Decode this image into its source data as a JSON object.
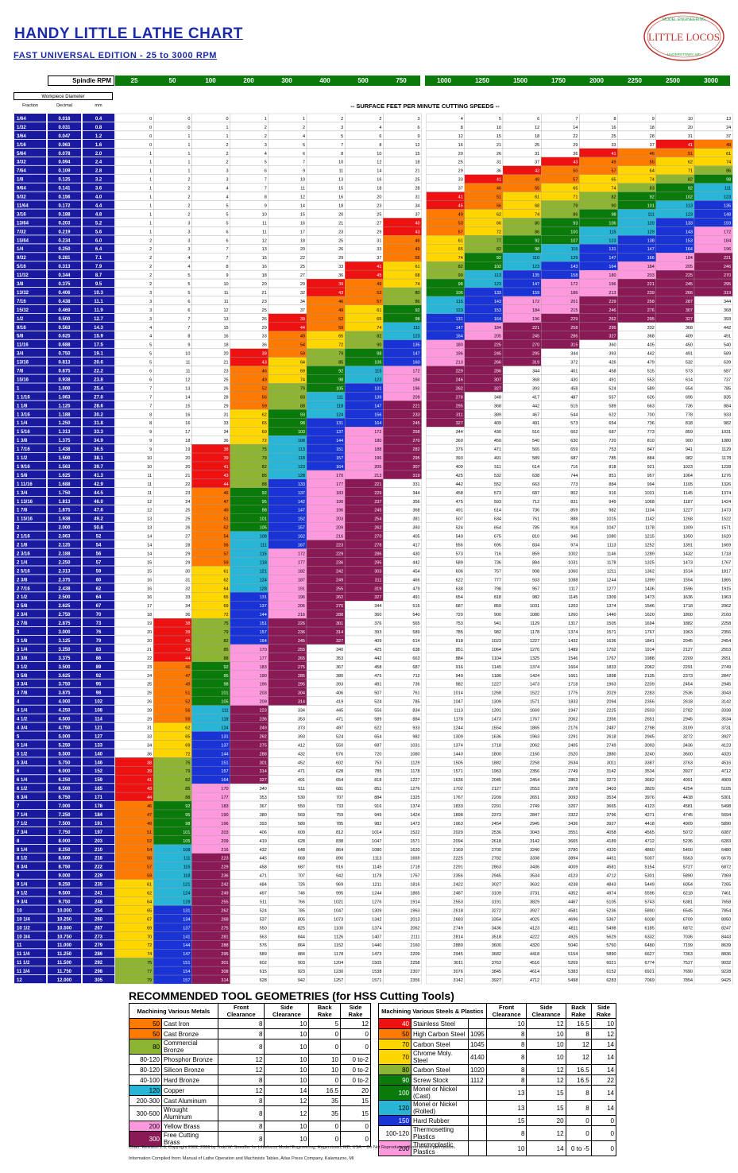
{
  "header": {
    "title": "HANDY LITTLE LATHE CHART",
    "subtitle": "FAST UNIVERSAL EDITION - 25 to 3000 RPM",
    "logo_text": "LITTLE LOCOS",
    "logo_top": "MODEL ENGINEERING",
    "logo_bottom": "HAGERSTOWN, MD"
  },
  "spindle": {
    "label": "Spindle RPM",
    "rpms": [
      "25",
      "50",
      "100",
      "200",
      "300",
      "400",
      "500",
      "750",
      "1000",
      "1250",
      "1500",
      "1750",
      "2000",
      "2250",
      "2500",
      "3000"
    ]
  },
  "workpiece": {
    "label": "Workpiece Diameter",
    "fraction": "Fraction",
    "decimal": "Decimal",
    "mm": "mm",
    "sfpm_caption": "-- SURFACE FEET PER MINUTE CUTTING SPEEDS --"
  },
  "colors": {
    "row_bg": "#1a1aa0",
    "green_header": "#0a7a0a",
    "band_red": "#ee1111",
    "band_orange": "#ff7a00",
    "band_yellow": "#ffd600",
    "band_olive": "#8db432",
    "band_blue": "#1a33d6",
    "band_cyan": "#29b6d6",
    "band_magenta": "#8a1a56",
    "band_pink": "#ff99dd",
    "band_darkgreen": "#0a7a0a"
  },
  "chart_data": {
    "type": "table",
    "rows": [
      {
        "frac": "1/64",
        "dec": "0.016",
        "mm": "0.4"
      },
      {
        "frac": "1/32",
        "dec": "0.031",
        "mm": "0.8"
      },
      {
        "frac": "3/64",
        "dec": "0.047",
        "mm": "1.2"
      },
      {
        "frac": "1/16",
        "dec": "0.063",
        "mm": "1.6"
      },
      {
        "frac": "5/64",
        "dec": "0.078",
        "mm": "2.0"
      },
      {
        "frac": "3/32",
        "dec": "0.094",
        "mm": "2.4"
      },
      {
        "frac": "7/64",
        "dec": "0.109",
        "mm": "2.8"
      },
      {
        "frac": "1/8",
        "dec": "0.125",
        "mm": "3.2"
      },
      {
        "frac": "9/64",
        "dec": "0.141",
        "mm": "3.6"
      },
      {
        "frac": "5/32",
        "dec": "0.156",
        "mm": "4.0"
      },
      {
        "frac": "11/64",
        "dec": "0.172",
        "mm": "4.4"
      },
      {
        "frac": "3/16",
        "dec": "0.188",
        "mm": "4.8"
      },
      {
        "frac": "13/64",
        "dec": "0.203",
        "mm": "5.2"
      },
      {
        "frac": "7/32",
        "dec": "0.219",
        "mm": "5.6"
      },
      {
        "frac": "15/64",
        "dec": "0.234",
        "mm": "6.0"
      },
      {
        "frac": "1/4",
        "dec": "0.250",
        "mm": "6.4"
      },
      {
        "frac": "9/32",
        "dec": "0.281",
        "mm": "7.1"
      },
      {
        "frac": "5/16",
        "dec": "0.313",
        "mm": "7.9"
      },
      {
        "frac": "11/32",
        "dec": "0.344",
        "mm": "8.7"
      },
      {
        "frac": "3/8",
        "dec": "0.375",
        "mm": "9.5"
      },
      {
        "frac": "13/32",
        "dec": "0.406",
        "mm": "10.3"
      },
      {
        "frac": "7/16",
        "dec": "0.438",
        "mm": "11.1"
      },
      {
        "frac": "15/32",
        "dec": "0.469",
        "mm": "11.9"
      },
      {
        "frac": "1/2",
        "dec": "0.500",
        "mm": "12.7"
      },
      {
        "frac": "9/16",
        "dec": "0.563",
        "mm": "14.3"
      },
      {
        "frac": "5/8",
        "dec": "0.625",
        "mm": "15.9"
      },
      {
        "frac": "11/16",
        "dec": "0.688",
        "mm": "17.5"
      },
      {
        "frac": "3/4",
        "dec": "0.750",
        "mm": "19.1"
      },
      {
        "frac": "13/16",
        "dec": "0.813",
        "mm": "20.6"
      },
      {
        "frac": "7/8",
        "dec": "0.875",
        "mm": "22.2"
      },
      {
        "frac": "15/16",
        "dec": "0.938",
        "mm": "23.8"
      },
      {
        "frac": "1",
        "dec": "1.000",
        "mm": "25.4"
      },
      {
        "frac": "1 1/16",
        "dec": "1.063",
        "mm": "27.0"
      },
      {
        "frac": "1 1/8",
        "dec": "1.125",
        "mm": "28.6"
      },
      {
        "frac": "1 3/16",
        "dec": "1.188",
        "mm": "30.2"
      },
      {
        "frac": "1 1/4",
        "dec": "1.250",
        "mm": "31.8"
      },
      {
        "frac": "1 5/16",
        "dec": "1.313",
        "mm": "33.3"
      },
      {
        "frac": "1 3/8",
        "dec": "1.375",
        "mm": "34.9"
      },
      {
        "frac": "1 7/16",
        "dec": "1.438",
        "mm": "36.5"
      },
      {
        "frac": "1 1/2",
        "dec": "1.500",
        "mm": "38.1"
      },
      {
        "frac": "1 9/16",
        "dec": "1.563",
        "mm": "39.7"
      },
      {
        "frac": "1 5/8",
        "dec": "1.625",
        "mm": "41.3"
      },
      {
        "frac": "1 11/16",
        "dec": "1.688",
        "mm": "42.9"
      },
      {
        "frac": "1 3/4",
        "dec": "1.750",
        "mm": "44.5"
      },
      {
        "frac": "1 13/16",
        "dec": "1.813",
        "mm": "46.0"
      },
      {
        "frac": "1 7/8",
        "dec": "1.875",
        "mm": "47.6"
      },
      {
        "frac": "1 15/16",
        "dec": "1.938",
        "mm": "49.2"
      },
      {
        "frac": "2",
        "dec": "2.000",
        "mm": "50.8"
      },
      {
        "frac": "2 1/16",
        "dec": "2.063",
        "mm": "52"
      },
      {
        "frac": "2 1/8",
        "dec": "2.125",
        "mm": "54"
      },
      {
        "frac": "2 3/16",
        "dec": "2.188",
        "mm": "56"
      },
      {
        "frac": "2 1/4",
        "dec": "2.250",
        "mm": "57"
      },
      {
        "frac": "2 5/16",
        "dec": "2.313",
        "mm": "59"
      },
      {
        "frac": "2 3/8",
        "dec": "2.375",
        "mm": "60"
      },
      {
        "frac": "2 7/16",
        "dec": "2.438",
        "mm": "62"
      },
      {
        "frac": "2 1/2",
        "dec": "2.500",
        "mm": "64"
      },
      {
        "frac": "2 5/8",
        "dec": "2.625",
        "mm": "67"
      },
      {
        "frac": "2 3/4",
        "dec": "2.750",
        "mm": "70"
      },
      {
        "frac": "2 7/8",
        "dec": "2.875",
        "mm": "73"
      },
      {
        "frac": "3",
        "dec": "3.000",
        "mm": "76"
      },
      {
        "frac": "3 1/8",
        "dec": "3.125",
        "mm": "79"
      },
      {
        "frac": "3 1/4",
        "dec": "3.250",
        "mm": "83"
      },
      {
        "frac": "3 3/8",
        "dec": "3.375",
        "mm": "86"
      },
      {
        "frac": "3 1/2",
        "dec": "3.500",
        "mm": "89"
      },
      {
        "frac": "3 5/8",
        "dec": "3.625",
        "mm": "92"
      },
      {
        "frac": "3 3/4",
        "dec": "3.750",
        "mm": "95"
      },
      {
        "frac": "3 7/8",
        "dec": "3.875",
        "mm": "98"
      },
      {
        "frac": "4",
        "dec": "4.000",
        "mm": "102"
      },
      {
        "frac": "4 1/4",
        "dec": "4.250",
        "mm": "108"
      },
      {
        "frac": "4 1/2",
        "dec": "4.500",
        "mm": "114"
      },
      {
        "frac": "4 3/4",
        "dec": "4.750",
        "mm": "121"
      },
      {
        "frac": "5",
        "dec": "5.000",
        "mm": "127"
      },
      {
        "frac": "5 1/4",
        "dec": "5.250",
        "mm": "133"
      },
      {
        "frac": "5 1/2",
        "dec": "5.500",
        "mm": "140"
      },
      {
        "frac": "5 3/4",
        "dec": "5.750",
        "mm": "146"
      },
      {
        "frac": "6",
        "dec": "6.000",
        "mm": "152"
      },
      {
        "frac": "6 1/4",
        "dec": "6.250",
        "mm": "159"
      },
      {
        "frac": "6 1/2",
        "dec": "6.500",
        "mm": "165"
      },
      {
        "frac": "6 3/4",
        "dec": "6.750",
        "mm": "171"
      },
      {
        "frac": "7",
        "dec": "7.000",
        "mm": "178"
      },
      {
        "frac": "7 1/4",
        "dec": "7.250",
        "mm": "184"
      },
      {
        "frac": "7 1/2",
        "dec": "7.500",
        "mm": "191"
      },
      {
        "frac": "7 3/4",
        "dec": "7.750",
        "mm": "197"
      },
      {
        "frac": "8",
        "dec": "8.000",
        "mm": "203"
      },
      {
        "frac": "8 1/4",
        "dec": "8.250",
        "mm": "210"
      },
      {
        "frac": "8 1/2",
        "dec": "8.500",
        "mm": "216"
      },
      {
        "frac": "8 3/4",
        "dec": "8.750",
        "mm": "222"
      },
      {
        "frac": "9",
        "dec": "9.000",
        "mm": "229"
      },
      {
        "frac": "9 1/4",
        "dec": "9.250",
        "mm": "235"
      },
      {
        "frac": "9 1/2",
        "dec": "9.500",
        "mm": "241"
      },
      {
        "frac": "9 3/4",
        "dec": "9.750",
        "mm": "248"
      },
      {
        "frac": "10",
        "dec": "10.000",
        "mm": "254"
      },
      {
        "frac": "10 1/4",
        "dec": "10.250",
        "mm": "260"
      },
      {
        "frac": "10 1/2",
        "dec": "10.500",
        "mm": "267"
      },
      {
        "frac": "10 3/4",
        "dec": "10.750",
        "mm": "273"
      },
      {
        "frac": "11",
        "dec": "11.000",
        "mm": "279"
      },
      {
        "frac": "11 1/4",
        "dec": "11.250",
        "mm": "286"
      },
      {
        "frac": "11 1/2",
        "dec": "11.500",
        "mm": "292"
      },
      {
        "frac": "11 3/4",
        "dec": "11.750",
        "mm": "298"
      },
      {
        "frac": "12",
        "dec": "12.000",
        "mm": "305"
      }
    ],
    "cell_formula": "round(decimal * pi * rpm / 12)",
    "bands": [
      {
        "lo": 0,
        "hi": 50,
        "color": "#ffffff"
      },
      {
        "lo": 38,
        "hi": 55,
        "color": "#ee1111"
      },
      {
        "lo": 45,
        "hi": 60,
        "color": "#ff7a00"
      },
      {
        "lo": 55,
        "hi": 80,
        "color": "#ffd600"
      },
      {
        "lo": 65,
        "hi": 100,
        "color": "#8db432"
      },
      {
        "lo": 80,
        "hi": 130,
        "color": "#0a7a0a"
      },
      {
        "lo": 100,
        "hi": 130,
        "color": "#29b6d6"
      },
      {
        "lo": 100,
        "hi": 170,
        "color": "#1a33d6"
      },
      {
        "lo": 150,
        "hi": 220,
        "color": "#ff99dd"
      },
      {
        "lo": 200,
        "hi": 330,
        "color": "#8a1a56"
      }
    ]
  },
  "recommended": {
    "title": "RECOMMENDED TOOL GEOMETRIES (for HSS Cutting Tools)",
    "left_head": [
      "Machining Various Metals",
      "Front Clearance",
      "Side Clearance",
      "Back Rake",
      "Side Rake"
    ],
    "right_head": [
      "Machining Various Steels & Plastics",
      "Front Clearance",
      "Side Clearance",
      "Back Rake",
      "Side Rake"
    ],
    "left_rows": [
      {
        "sfpm": "50",
        "color": "#ff7a00",
        "name": "Cast Iron",
        "fc": "8",
        "sc": "10",
        "br": "5",
        "sr": "12"
      },
      {
        "sfpm": "50",
        "color": "#ff7a00",
        "name": "Cast Bronze",
        "fc": "8",
        "sc": "10",
        "br": "0",
        "sr": "0"
      },
      {
        "sfpm": "80",
        "color": "#8db432",
        "name": "Commercial Bronze",
        "fc": "8",
        "sc": "10",
        "br": "0",
        "sr": "0"
      },
      {
        "sfpm": "80-120",
        "color": "#ffffff",
        "name": "Phosphor Bronze",
        "fc": "12",
        "sc": "10",
        "br": "10",
        "sr": "0 to-2"
      },
      {
        "sfpm": "80-120",
        "color": "#ffffff",
        "name": "Silicon Bronze",
        "fc": "12",
        "sc": "10",
        "br": "10",
        "sr": "0 to-2"
      },
      {
        "sfpm": "40-100",
        "color": "#ffffff",
        "name": "Hard Bronze",
        "fc": "8",
        "sc": "10",
        "br": "0",
        "sr": "0 to-2"
      },
      {
        "sfpm": "120",
        "color": "#29b6d6",
        "name": "Copper",
        "fc": "12",
        "sc": "14",
        "br": "16.5",
        "sr": "20"
      },
      {
        "sfpm": "200-300",
        "color": "#ffffff",
        "name": "Cast Aluminum",
        "fc": "8",
        "sc": "12",
        "br": "35",
        "sr": "15"
      },
      {
        "sfpm": "300-500",
        "color": "#ffffff",
        "name": "Wrought Aluminum",
        "fc": "8",
        "sc": "12",
        "br": "35",
        "sr": "15"
      },
      {
        "sfpm": "200",
        "color": "#ff99dd",
        "name": "Yellow Brass",
        "fc": "8",
        "sc": "10",
        "br": "0",
        "sr": "0"
      },
      {
        "sfpm": "300",
        "color": "#8a1a56",
        "name": "Free Cutting Brass",
        "fc": "8",
        "sc": "10",
        "br": "0",
        "sr": "0"
      }
    ],
    "right_rows": [
      {
        "sfpm": "40",
        "color": "#ee1111",
        "name": "Stainless Steel",
        "num": "",
        "fc": "10",
        "sc": "12",
        "br": "16.5",
        "sr": "10"
      },
      {
        "sfpm": "50",
        "color": "#ff7a00",
        "name": "High Carbon Steel",
        "num": "1095",
        "fc": "8",
        "sc": "10",
        "br": "8",
        "sr": "12"
      },
      {
        "sfpm": "70",
        "color": "#ffd600",
        "name": "Carbon Steel",
        "num": "1045",
        "fc": "8",
        "sc": "10",
        "br": "12",
        "sr": "14"
      },
      {
        "sfpm": "70",
        "color": "#ffd600",
        "name": "Chrome Moly. Steel",
        "num": "4140",
        "fc": "8",
        "sc": "10",
        "br": "12",
        "sr": "14"
      },
      {
        "sfpm": "80",
        "color": "#8db432",
        "name": "Carbon Steel",
        "num": "1020",
        "fc": "8",
        "sc": "12",
        "br": "16.5",
        "sr": "14"
      },
      {
        "sfpm": "90",
        "color": "#0a7a0a",
        "name": "Screw Stock",
        "num": "1112",
        "fc": "8",
        "sc": "12",
        "br": "16.5",
        "sr": "22"
      },
      {
        "sfpm": "100",
        "color": "#0a7a0a",
        "name": "Monel or Nickel (Cast)",
        "num": "",
        "fc": "13",
        "sc": "15",
        "br": "8",
        "sr": "14"
      },
      {
        "sfpm": "120",
        "color": "#29b6d6",
        "name": "Monel or Nickel (Rolled)",
        "num": "",
        "fc": "13",
        "sc": "15",
        "br": "8",
        "sr": "14"
      },
      {
        "sfpm": "150",
        "color": "#1a33d6",
        "name": "Hard Rubber",
        "num": "",
        "fc": "15",
        "sc": "20",
        "br": "0",
        "sr": "0"
      },
      {
        "sfpm": "100-120",
        "color": "#ffffff",
        "name": "Thermosetting Plastics",
        "num": "",
        "fc": "8",
        "sc": "12",
        "br": "0",
        "sr": "0"
      },
      {
        "sfpm": "200",
        "color": "#ff99dd",
        "name": "Thermoplastic Plastics",
        "num": "",
        "fc": "10",
        "sc": "14",
        "br": "0 to -5",
        "sr": "0"
      }
    ]
  },
  "footer": {
    "line1": "Chart: Revision 2.0, Copyright 2002, 2006 by Todd W. Sneuffer for Littlelocos Model Engineering, Hagerstown, MD, USA -- Do Not Reproduce without written permission.",
    "line2": "Information Compiled from:  Manual of Lathe Operation and Machinists Tables, Atlas Press Company, Kalamazoo, MI"
  }
}
